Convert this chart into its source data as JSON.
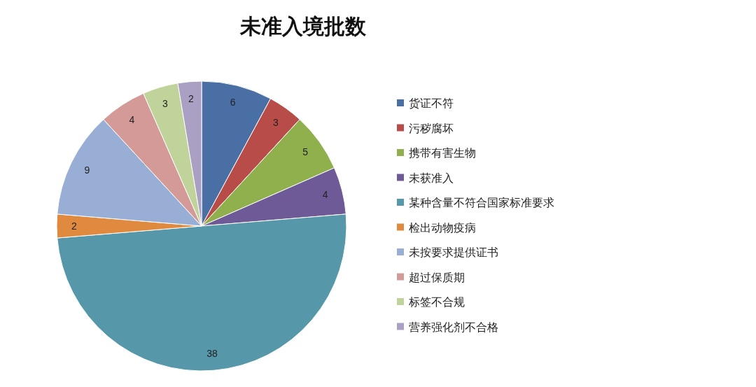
{
  "chart_data": {
    "type": "pie",
    "title": "未准入境批数",
    "categories": [
      "货证不符",
      "污秽腐坏",
      "携带有害生物",
      "未获准入",
      "某种含量不符合国家标准要求",
      "检出动物疫病",
      "未按要求提供证书",
      "超过保质期",
      "标签不合规",
      "营养强化剂不合格"
    ],
    "values": [
      6,
      3,
      5,
      4,
      38,
      2,
      9,
      4,
      3,
      2
    ],
    "colors": [
      "#4a6fa5",
      "#b84c48",
      "#8fb04c",
      "#6d5a96",
      "#5698a9",
      "#e08a3f",
      "#98aed4",
      "#d49a98",
      "#bfd39b",
      "#aaa0c4"
    ],
    "data_labels": true,
    "legend": "right"
  }
}
